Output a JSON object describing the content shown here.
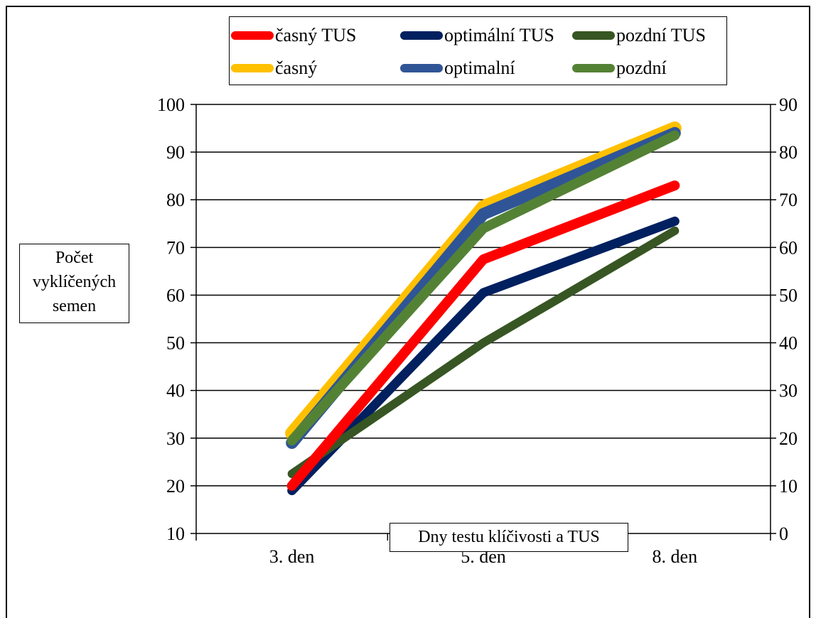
{
  "chart_data": {
    "type": "line",
    "categories": [
      "3. den",
      "5. den",
      "8. den"
    ],
    "xlabel": "Dny testu klíčivosti a TUS",
    "ylabel": [
      "Počet",
      "vyklíčených",
      "semen"
    ],
    "ylim": [
      10,
      100
    ],
    "yticks": [
      "10",
      "20",
      "30",
      "40",
      "50",
      "60",
      "70",
      "80",
      "90",
      "100"
    ],
    "y2lim": [
      0,
      90
    ],
    "y2ticks": [
      "0",
      "10",
      "20",
      "30",
      "40",
      "50",
      "60",
      "70",
      "80",
      "90"
    ],
    "grid": true,
    "legend_position": "top",
    "series": [
      {
        "name": "časný",
        "axis": "left",
        "color": "#ffc000",
        "width": 19,
        "values": [
          31,
          78.5,
          95
        ]
      },
      {
        "name": "optimalní",
        "axis": "left",
        "color": "#2f5597",
        "width": 17,
        "values": [
          29,
          77,
          94
        ]
      },
      {
        "name": "pozdní",
        "axis": "left",
        "color": "#548235",
        "width": 14,
        "values": [
          29.5,
          74,
          93.5
        ]
      },
      {
        "name": "časný TUS",
        "axis": "right",
        "color": "#ff0000",
        "width": 14,
        "values": [
          10,
          57.5,
          73
        ]
      },
      {
        "name": "optimální TUS",
        "axis": "right",
        "color": "#002060",
        "width": 13,
        "values": [
          9,
          50.5,
          65.5
        ]
      },
      {
        "name": "pozdní TUS",
        "axis": "right",
        "color": "#375623",
        "width": 12,
        "values": [
          12.5,
          40,
          63.5
        ]
      }
    ],
    "legend_rows": [
      [
        "časný TUS",
        "optimální TUS",
        "pozdní TUS"
      ],
      [
        "časný",
        "optimalní",
        "pozdní"
      ]
    ]
  }
}
